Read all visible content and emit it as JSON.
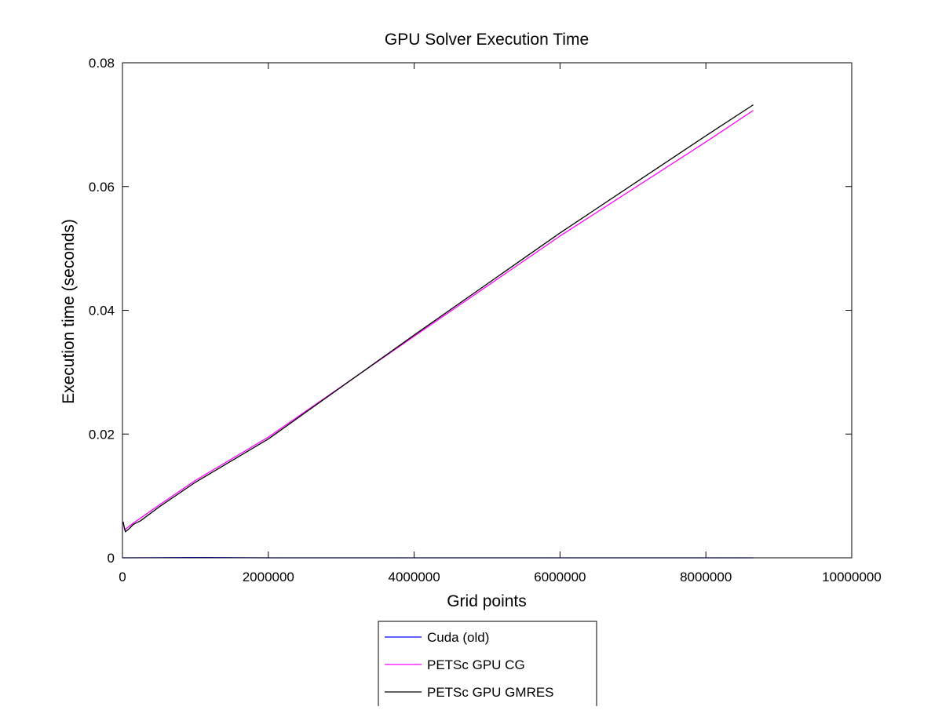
{
  "chart_data": {
    "type": "line",
    "title": "GPU Solver Execution Time",
    "xlabel": "Grid points",
    "ylabel": "Execution time (seconds)",
    "xlim": [
      0,
      10000000
    ],
    "ylim": [
      0,
      0.08
    ],
    "x_ticks": [
      0,
      2000000,
      4000000,
      6000000,
      8000000,
      10000000
    ],
    "x_tick_labels": [
      "0",
      "2000000",
      "4000000",
      "6000000",
      "8000000",
      "10000000"
    ],
    "y_ticks": [
      0,
      0.02,
      0.04,
      0.06,
      0.08
    ],
    "y_tick_labels": [
      "0",
      "0.02",
      "0.04",
      "0.06",
      "0.08"
    ],
    "grid": false,
    "legend_position": "below-center",
    "series": [
      {
        "name": "Cuda (old)",
        "color": "#0000ff",
        "x": [
          0,
          1000000,
          1400000,
          2000000,
          4000000,
          6000000,
          8000000,
          8650000
        ],
        "y": [
          0.0,
          5e-05,
          3e-05,
          0.0,
          0.0,
          0.0,
          0.0,
          0.0
        ]
      },
      {
        "name": "PETSc GPU CG",
        "color": "#ff00ff",
        "x": [
          10000,
          30000,
          60000,
          150000,
          500000,
          1000000,
          2000000,
          4000000,
          6000000,
          8000000,
          8650000
        ],
        "y": [
          0.0058,
          0.0045,
          0.0048,
          0.0056,
          0.0085,
          0.0125,
          0.0195,
          0.0358,
          0.052,
          0.0672,
          0.0723
        ]
      },
      {
        "name": "PETSc GPU GMRES",
        "color": "#000000",
        "x": [
          10000,
          20000,
          40000,
          100000,
          150000,
          250000,
          500000,
          1000000,
          2000000,
          4000000,
          6000000,
          8000000,
          8650000
        ],
        "y": [
          0.0058,
          0.0052,
          0.0042,
          0.0048,
          0.0054,
          0.006,
          0.0082,
          0.0122,
          0.0192,
          0.036,
          0.0525,
          0.0682,
          0.0732
        ]
      }
    ]
  }
}
